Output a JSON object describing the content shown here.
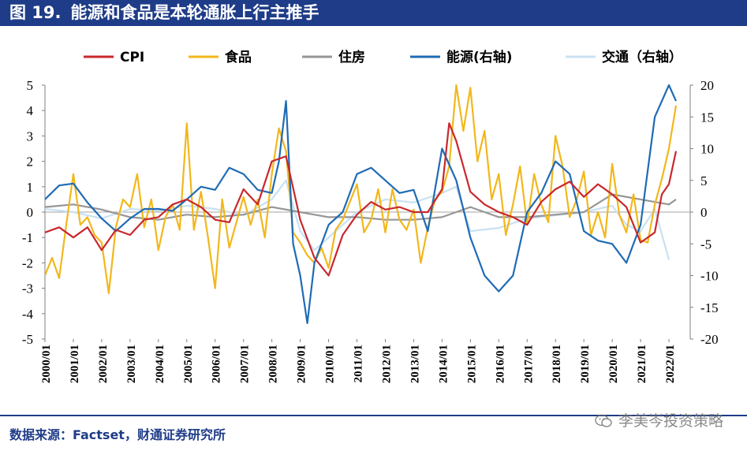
{
  "title": {
    "figure_no": "图 19.",
    "text": "能源和食品是本轮通胀上行主推手"
  },
  "source": "数据来源：Factset，财通证券研究所",
  "watermark": "李美岑投资策略",
  "colors": {
    "cpi": "#c8282d",
    "food": "#f2b71c",
    "housing": "#969696",
    "energy": "#1f6bb5",
    "transport": "#c9e1f3",
    "title_bg": "#1f3c88"
  },
  "chart_data": {
    "type": "line",
    "title": "能源和食品是本轮通胀上行主推手",
    "xlabel": "",
    "ylabel": "",
    "x_ticks": [
      "2000/01",
      "2001/01",
      "2002/01",
      "2003/01",
      "2004/01",
      "2005/01",
      "2006/01",
      "2007/01",
      "2008/01",
      "2009/01",
      "2010/01",
      "2011/01",
      "2012/01",
      "2013/01",
      "2014/01",
      "2015/01",
      "2016/01",
      "2017/01",
      "2018/01",
      "2019/01",
      "2020/01",
      "2021/01",
      "2022/01"
    ],
    "y_left": {
      "min": -5,
      "max": 5,
      "ticks": [
        "5",
        "4",
        "3",
        "2",
        "1",
        "0",
        "-1",
        "-2",
        "-3",
        "-4",
        "-5"
      ]
    },
    "y_right": {
      "min": -20,
      "max": 20,
      "ticks": [
        "20",
        "15",
        "10",
        "5",
        "0",
        "-5",
        "-10",
        "-15",
        "-20"
      ]
    },
    "legend": [
      "CPI",
      "食品",
      "住房",
      "能源(右轴)",
      "交通（右轴）"
    ],
    "series": [
      {
        "name": "CPI",
        "axis": "left",
        "color": "#c8282d",
        "dates": [
          "2000/01",
          "2000/07",
          "2001/01",
          "2001/07",
          "2002/01",
          "2002/07",
          "2003/01",
          "2003/07",
          "2004/01",
          "2004/07",
          "2005/01",
          "2005/07",
          "2006/01",
          "2006/07",
          "2007/01",
          "2007/07",
          "2008/01",
          "2008/07",
          "2009/01",
          "2009/07",
          "2010/01",
          "2010/07",
          "2011/01",
          "2011/07",
          "2012/01",
          "2012/07",
          "2013/01",
          "2013/07",
          "2014/01",
          "2014/04",
          "2014/07",
          "2015/01",
          "2015/07",
          "2016/01",
          "2016/07",
          "2017/01",
          "2017/07",
          "2018/01",
          "2018/07",
          "2019/01",
          "2019/07",
          "2020/01",
          "2020/07",
          "2021/01",
          "2021/07",
          "2021/10",
          "2022/01",
          "2022/04"
        ],
        "values": [
          -0.8,
          -0.6,
          -1.0,
          -0.6,
          -1.5,
          -0.7,
          -0.9,
          -0.3,
          -0.2,
          0.3,
          0.5,
          0.2,
          -0.3,
          -0.4,
          0.9,
          0.3,
          2.0,
          2.2,
          -0.3,
          -1.8,
          -2.5,
          -0.9,
          -0.1,
          0.4,
          0.1,
          0.2,
          0.0,
          0.0,
          0.9,
          3.5,
          2.8,
          0.8,
          0.3,
          0.0,
          -0.2,
          -0.5,
          0.4,
          0.9,
          1.2,
          0.6,
          1.1,
          0.7,
          0.2,
          -1.2,
          -0.8,
          0.7,
          1.1,
          2.4
        ]
      },
      {
        "name": "食品",
        "axis": "left",
        "color": "#f2b71c",
        "dates": [
          "2000/01",
          "2000/04",
          "2000/07",
          "2000/10",
          "2001/01",
          "2001/04",
          "2001/07",
          "2001/10",
          "2002/01",
          "2002/04",
          "2002/07",
          "2002/10",
          "2003/01",
          "2003/04",
          "2003/07",
          "2003/10",
          "2004/01",
          "2004/04",
          "2004/07",
          "2004/10",
          "2005/01",
          "2005/04",
          "2005/07",
          "2005/10",
          "2006/01",
          "2006/04",
          "2006/07",
          "2006/10",
          "2007/01",
          "2007/04",
          "2007/07",
          "2007/10",
          "2008/01",
          "2008/04",
          "2008/07",
          "2008/10",
          "2009/01",
          "2009/04",
          "2009/07",
          "2009/10",
          "2010/01",
          "2010/04",
          "2010/07",
          "2010/10",
          "2011/01",
          "2011/04",
          "2011/07",
          "2011/10",
          "2012/01",
          "2012/04",
          "2012/07",
          "2012/10",
          "2013/01",
          "2013/04",
          "2013/07",
          "2013/10",
          "2014/01",
          "2014/04",
          "2014/07",
          "2014/10",
          "2015/01",
          "2015/04",
          "2015/07",
          "2015/10",
          "2016/01",
          "2016/04",
          "2016/07",
          "2016/10",
          "2017/01",
          "2017/04",
          "2017/07",
          "2017/10",
          "2018/01",
          "2018/04",
          "2018/07",
          "2018/10",
          "2019/01",
          "2019/04",
          "2019/07",
          "2019/10",
          "2020/01",
          "2020/04",
          "2020/07",
          "2020/10",
          "2021/01",
          "2021/04",
          "2021/07",
          "2021/10",
          "2022/01",
          "2022/04"
        ],
        "values": [
          -2.5,
          -1.8,
          -2.6,
          -0.5,
          1.5,
          -0.5,
          -0.2,
          -0.9,
          -1.2,
          -3.2,
          -0.6,
          0.5,
          0.2,
          1.5,
          -0.6,
          0.5,
          -1.5,
          -0.2,
          0.3,
          -0.7,
          3.5,
          -0.7,
          0.8,
          -1.0,
          -3.0,
          0.5,
          -1.4,
          -0.4,
          0.6,
          -0.5,
          0.5,
          -1.0,
          1.5,
          3.3,
          2.4,
          -0.8,
          -1.2,
          -1.7,
          -2.0,
          -1.4,
          -2.2,
          -0.7,
          -0.3,
          0.4,
          1.1,
          -0.8,
          -0.3,
          0.9,
          -0.8,
          0.9,
          -0.3,
          -0.7,
          0.1,
          -2.0,
          -0.6,
          0.5,
          0.8,
          1.8,
          5.0,
          3.2,
          4.9,
          2.0,
          3.2,
          0.5,
          1.5,
          -0.9,
          0.3,
          1.8,
          -0.5,
          1.5,
          0.3,
          -0.4,
          3.0,
          1.8,
          -0.2,
          0.5,
          1.6,
          -0.9,
          0.0,
          -1.0,
          1.9,
          -0.1,
          -0.8,
          0.7,
          -1.1,
          -1.2,
          0.3,
          1.3,
          2.5,
          4.2
        ]
      },
      {
        "name": "住房",
        "axis": "left",
        "color": "#969696",
        "dates": [
          "2000/01",
          "2001/01",
          "2002/01",
          "2003/01",
          "2004/01",
          "2005/01",
          "2006/01",
          "2007/01",
          "2008/01",
          "2009/01",
          "2010/01",
          "2011/01",
          "2012/01",
          "2013/01",
          "2014/01",
          "2015/01",
          "2016/01",
          "2017/01",
          "2018/01",
          "2019/01",
          "2020/01",
          "2021/01",
          "2022/01",
          "2022/04"
        ],
        "values": [
          0.2,
          0.3,
          0.1,
          -0.2,
          -0.3,
          -0.1,
          -0.2,
          -0.1,
          0.2,
          0.0,
          -0.2,
          -0.2,
          -0.3,
          -0.3,
          -0.2,
          0.2,
          -0.2,
          -0.2,
          -0.1,
          0.0,
          0.7,
          0.5,
          0.3,
          0.5
        ]
      },
      {
        "name": "能源(右轴)",
        "axis": "right",
        "color": "#1f6bb5",
        "dates": [
          "2000/01",
          "2000/07",
          "2001/01",
          "2001/07",
          "2002/01",
          "2002/07",
          "2003/01",
          "2003/07",
          "2004/01",
          "2004/07",
          "2005/01",
          "2005/07",
          "2006/01",
          "2006/07",
          "2007/01",
          "2007/07",
          "2008/01",
          "2008/04",
          "2008/07",
          "2008/10",
          "2009/01",
          "2009/04",
          "2009/07",
          "2010/01",
          "2010/07",
          "2011/01",
          "2011/07",
          "2012/01",
          "2012/07",
          "2013/01",
          "2013/07",
          "2014/01",
          "2014/07",
          "2015/01",
          "2015/07",
          "2016/01",
          "2016/07",
          "2017/01",
          "2017/07",
          "2018/01",
          "2018/07",
          "2019/01",
          "2019/07",
          "2020/01",
          "2020/07",
          "2021/01",
          "2021/07",
          "2022/01",
          "2022/04"
        ],
        "values": [
          2.0,
          4.2,
          4.5,
          1.5,
          -1.0,
          -3.0,
          -1.0,
          0.5,
          0.5,
          0.2,
          2.0,
          4.0,
          3.5,
          7.0,
          6.0,
          3.5,
          3.0,
          8.0,
          17.5,
          -5.0,
          -10.0,
          -17.5,
          -8.0,
          -2.0,
          0.0,
          6.0,
          7.0,
          5.0,
          3.0,
          3.5,
          -3.0,
          10.0,
          5.0,
          -4.0,
          -10.0,
          -12.5,
          -10.0,
          0.0,
          3.0,
          8.0,
          6.0,
          -3.0,
          -4.5,
          -5.0,
          -8.0,
          -2.0,
          15.0,
          20.0,
          17.5
        ]
      },
      {
        "name": "交通（右轴）",
        "axis": "right",
        "color": "#c9e1f3",
        "dates": [
          "2000/01",
          "2001/01",
          "2002/01",
          "2003/01",
          "2004/01",
          "2005/01",
          "2006/01",
          "2007/01",
          "2008/01",
          "2008/07",
          "2009/01",
          "2009/07",
          "2010/01",
          "2011/01",
          "2012/01",
          "2013/01",
          "2014/01",
          "2014/07",
          "2015/01",
          "2016/01",
          "2017/01",
          "2018/01",
          "2019/01",
          "2020/01",
          "2020/07",
          "2021/01",
          "2021/07",
          "2022/01"
        ],
        "values": [
          0.5,
          0.0,
          -1.0,
          0.5,
          0.2,
          1.0,
          0.5,
          -0.5,
          2.0,
          5.0,
          -3.0,
          -6.0,
          -4.0,
          0.0,
          2.0,
          1.5,
          3.0,
          4.0,
          -3.0,
          -2.5,
          -1.0,
          -0.5,
          0.0,
          1.0,
          -2.0,
          -3.0,
          0.5,
          -7.5
        ]
      }
    ]
  }
}
